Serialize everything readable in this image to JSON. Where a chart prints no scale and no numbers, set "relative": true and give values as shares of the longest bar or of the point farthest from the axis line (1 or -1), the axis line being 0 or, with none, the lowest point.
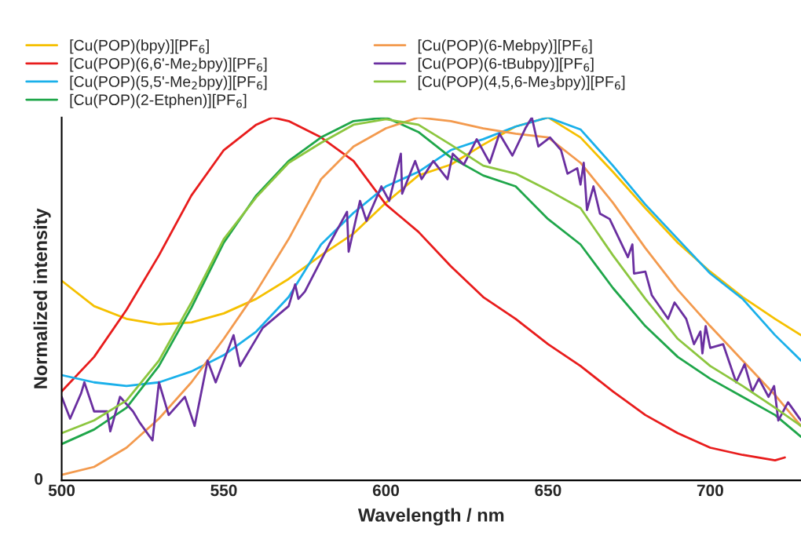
{
  "chart_data": {
    "type": "line",
    "xlabel": "Wavelength / nm",
    "ylabel": "Normalized intensity",
    "relative": true,
    "annotations": [
      "0"
    ],
    "xlim": [
      500,
      728
    ],
    "xticks": [
      500,
      550,
      600,
      650,
      700
    ],
    "grid": false,
    "legend": "top",
    "marker": "none",
    "line_style": "solid",
    "series": [
      {
        "name": "[Cu(POP)(bpy)][PF$_{6}$]",
        "color": "#f5c000",
        "x": [
          500,
          510,
          520,
          530,
          540,
          550,
          560,
          570,
          580,
          590,
          600,
          610,
          620,
          630,
          640,
          650,
          660,
          670,
          680,
          690,
          700,
          710,
          720,
          728
        ],
        "values": [
          0.55,
          0.48,
          0.445,
          0.43,
          0.435,
          0.46,
          0.5,
          0.555,
          0.62,
          0.68,
          0.765,
          0.84,
          0.87,
          0.925,
          0.975,
          1.0,
          0.945,
          0.85,
          0.75,
          0.655,
          0.575,
          0.505,
          0.445,
          0.4
        ]
      },
      {
        "name": "[Cu(POP)(6,6'-Me$_{2}$bpy)][PF$_{6}$]",
        "color": "#e81c1c",
        "x": [
          500,
          510,
          520,
          530,
          540,
          550,
          560,
          565,
          570,
          580,
          590,
          600,
          610,
          620,
          630,
          640,
          650,
          660,
          670,
          680,
          690,
          700,
          710,
          720,
          723
        ],
        "values": [
          0.245,
          0.34,
          0.47,
          0.62,
          0.785,
          0.91,
          0.98,
          1.0,
          0.99,
          0.945,
          0.88,
          0.76,
          0.685,
          0.59,
          0.505,
          0.445,
          0.375,
          0.315,
          0.245,
          0.18,
          0.13,
          0.09,
          0.07,
          0.055,
          0.063
        ]
      },
      {
        "name": "[Cu(POP)(5,5'-Me$_{2}$bpy)][PF$_{6}$]",
        "color": "#1ab0ea",
        "x": [
          500,
          510,
          520,
          530,
          540,
          550,
          560,
          570,
          580,
          590,
          600,
          610,
          620,
          630,
          640,
          650,
          660,
          670,
          680,
          690,
          700,
          710,
          720,
          728
        ],
        "values": [
          0.29,
          0.27,
          0.26,
          0.27,
          0.3,
          0.345,
          0.41,
          0.505,
          0.65,
          0.737,
          0.81,
          0.85,
          0.91,
          0.94,
          0.975,
          1.0,
          0.967,
          0.867,
          0.76,
          0.665,
          0.57,
          0.5,
          0.4,
          0.33
        ]
      },
      {
        "name": "[Cu(POP)(2-Etphen)][PF$_{6}$]",
        "color": "#1fa64a",
        "x": [
          500,
          510,
          520,
          530,
          540,
          550,
          560,
          570,
          580,
          590,
          600,
          610,
          620,
          630,
          640,
          650,
          660,
          670,
          680,
          690,
          700,
          710,
          720,
          728
        ],
        "values": [
          0.1,
          0.14,
          0.2,
          0.315,
          0.475,
          0.655,
          0.785,
          0.88,
          0.945,
          0.99,
          1.0,
          0.96,
          0.89,
          0.84,
          0.81,
          0.72,
          0.65,
          0.53,
          0.425,
          0.34,
          0.28,
          0.23,
          0.18,
          0.12
        ]
      },
      {
        "name": "[Cu(POP)(6-Mebpy)][PF$_{6}$]",
        "color": "#f39a4e",
        "x": [
          500,
          510,
          520,
          530,
          540,
          550,
          560,
          570,
          580,
          590,
          600,
          610,
          620,
          630,
          640,
          650,
          660,
          670,
          680,
          690,
          700,
          710,
          720,
          728
        ],
        "values": [
          0.015,
          0.037,
          0.09,
          0.17,
          0.27,
          0.39,
          0.52,
          0.665,
          0.83,
          0.92,
          0.97,
          1.0,
          0.99,
          0.97,
          0.955,
          0.945,
          0.875,
          0.765,
          0.64,
          0.525,
          0.425,
          0.33,
          0.235,
          0.15
        ]
      },
      {
        "name": "[Cu(POP)(6-tBubpy)][PF$_{6}$]",
        "color": "#6a2fa0",
        "x": [
          500,
          502.6,
          506,
          507,
          510,
          514,
          515,
          518,
          522,
          524,
          528,
          530,
          533,
          538,
          541,
          545,
          547.5,
          553,
          555,
          562,
          570,
          572,
          573,
          575,
          582.5,
          588,
          588.5,
          592,
          594,
          598.6,
          601,
          604.6,
          605,
          609,
          611,
          614.6,
          619,
          620.6,
          624,
          628,
          632,
          635,
          639,
          643,
          645,
          647,
          650.6,
          654,
          656,
          659,
          660,
          661,
          662,
          664,
          666,
          669,
          674.6,
          676,
          676.5,
          680,
          682,
          687,
          689,
          692.6,
          695,
          697,
          697.6,
          698.6,
          700,
          704,
          708,
          710.6,
          713,
          715,
          718,
          719.7,
          721,
          724,
          728
        ],
        "values": [
          0.23,
          0.17,
          0.24,
          0.27,
          0.19,
          0.19,
          0.135,
          0.23,
          0.19,
          0.16,
          0.11,
          0.27,
          0.18,
          0.23,
          0.15,
          0.33,
          0.27,
          0.4,
          0.315,
          0.42,
          0.48,
          0.54,
          0.5,
          0.52,
          0.65,
          0.74,
          0.63,
          0.77,
          0.715,
          0.81,
          0.77,
          0.9,
          0.79,
          0.88,
          0.83,
          0.88,
          0.83,
          0.9,
          0.87,
          0.94,
          0.875,
          0.955,
          0.895,
          0.97,
          1.0,
          0.92,
          0.945,
          0.91,
          0.845,
          0.86,
          0.815,
          0.875,
          0.745,
          0.81,
          0.735,
          0.72,
          0.615,
          0.65,
          0.57,
          0.575,
          0.51,
          0.445,
          0.49,
          0.445,
          0.375,
          0.41,
          0.35,
          0.425,
          0.365,
          0.375,
          0.27,
          0.32,
          0.245,
          0.28,
          0.23,
          0.26,
          0.165,
          0.215,
          0.165
        ]
      },
      {
        "name": "[Cu(POP)(4,5,6-Me$_{3}$bpy)][PF$_{6}$]",
        "color": "#8cc63f",
        "x": [
          500,
          510,
          520,
          530,
          540,
          550,
          560,
          570,
          580,
          590,
          600,
          610,
          620,
          630,
          640,
          650,
          660,
          670,
          680,
          690,
          700,
          710,
          720,
          728
        ],
        "values": [
          0.13,
          0.165,
          0.22,
          0.33,
          0.49,
          0.665,
          0.78,
          0.875,
          0.93,
          0.98,
          0.995,
          0.98,
          0.925,
          0.867,
          0.845,
          0.8,
          0.75,
          0.62,
          0.5,
          0.39,
          0.315,
          0.26,
          0.2,
          0.15
        ]
      }
    ]
  }
}
